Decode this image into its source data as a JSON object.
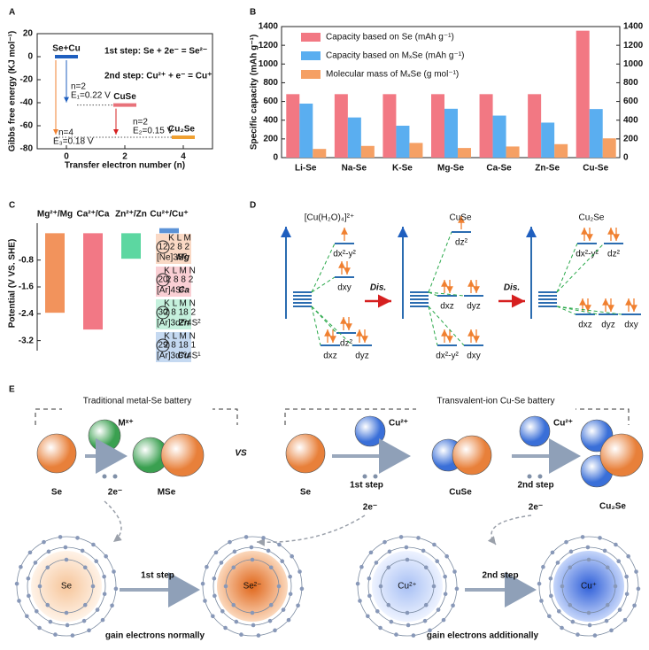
{
  "panels": [
    "A",
    "B",
    "C",
    "D",
    "E"
  ],
  "chart_data": [
    {
      "type": "energy",
      "xlabel": "Transfer electron number (n)",
      "ylabel": "Gibbs free energy (KJ mol⁻¹)",
      "x": [
        0,
        2,
        4
      ],
      "values": [
        0,
        -42,
        -70
      ],
      "labels": [
        "Se+Cu",
        "CuSe",
        "Cu₂Se"
      ],
      "colors": [
        "#1f5fbf",
        "#e8727a",
        "#f0a030"
      ],
      "xlim": [
        -1,
        5
      ],
      "xticks": [
        0,
        2,
        4
      ],
      "ylim": [
        -80,
        20
      ],
      "yticks": [
        -80,
        -60,
        -40,
        -20,
        0,
        20
      ],
      "annotations": [
        "1st step: Se + 2e⁻ = Se²⁻",
        "2nd step: Cu²⁺ + e⁻ = Cu⁺",
        "n=2",
        "E₁=0.22 V",
        "n=2",
        "E₂=0.15 V",
        "n=4",
        "E₃=0.18 V"
      ]
    },
    {
      "type": "bar",
      "ylabel": "Specific capacity (mAh g⁻¹)",
      "categories": [
        "Li-Se",
        "Na-Se",
        "K-Se",
        "Mg-Se",
        "Ca-Se",
        "Zn-Se",
        "Cu-Se"
      ],
      "series": [
        {
          "name": "Capacity based on Se (mAh g⁻¹)",
          "color": "#f27883",
          "values": [
            678,
            678,
            678,
            678,
            678,
            678,
            1356
          ]
        },
        {
          "name": "Capacity based on MₓSe (mAh g⁻¹)",
          "color": "#5aaef0",
          "values": [
            577,
            429,
            341,
            522,
            449,
            374,
            519
          ]
        },
        {
          "name": "Molecular mass of MₓSe (g mol⁻¹)",
          "color": "#f5a064",
          "axis": "y2",
          "values": [
            93,
            125,
            157,
            103,
            119,
            144,
            206
          ]
        }
      ],
      "ylim": [
        0,
        1400
      ],
      "yticks": [
        0,
        200,
        400,
        600,
        800,
        1000,
        1200,
        1400
      ],
      "y2lim": [
        0,
        1400
      ],
      "y2ticks": [
        0,
        200,
        400,
        600,
        800,
        1000,
        1200,
        1400
      ]
    },
    {
      "type": "bar",
      "ylabel": "Potential (V VS. SHE)",
      "categories": [
        "Mg²⁺/Mg",
        "Ca²⁺/Ca",
        "Zn²⁺/Zn",
        "Cu²⁺/Cu⁺"
      ],
      "values": [
        -2.37,
        -2.87,
        -0.76,
        0.15
      ],
      "colors": [
        "#f08040",
        "#f06070",
        "#40d090",
        "#4080d0"
      ],
      "ylim": [
        0.3,
        -3.5
      ],
      "yticks": [
        -3.2,
        -2.4,
        -1.6,
        -0.8
      ],
      "insets": [
        {
          "z": "12",
          "shells": "K L M",
          "counts": "2 8 2",
          "config": "[Ne]3S²",
          "symbol": "Mg"
        },
        {
          "z": "20",
          "shells": "K L M N",
          "counts": "2 8 8 2",
          "config": "[Ar]4S²",
          "symbol": "Ca"
        },
        {
          "z": "30",
          "shells": "K L M N",
          "counts": "2 8 18 2",
          "config": "[Ar]3d¹⁰4S²",
          "symbol": "Zn"
        },
        {
          "z": "29",
          "shells": "K L M N",
          "counts": "2 8 18 1",
          "config": "[Ar]3d¹⁰4S¹",
          "symbol": "Cu"
        }
      ]
    }
  ],
  "diagram_d": {
    "complexes": [
      "[Cu(H₂O)₄]²⁺",
      "CuSe",
      "Cu₂Se"
    ],
    "steps": [
      "Dis.",
      "Dis."
    ],
    "orbitals": [
      [
        "dx²-y²",
        "dxy",
        "dxz",
        "dz²",
        "dyz"
      ],
      [
        "dz²",
        "dxz",
        "dyz",
        "dx²-y²",
        "dxy"
      ],
      [
        "dx²-y²",
        "dz²",
        "dxz",
        "dyz",
        "dxy"
      ]
    ]
  },
  "diagram_e": {
    "titles": [
      "Traditional metal-Se battery",
      "Transvalent-ion Cu-Se battery"
    ],
    "vs": "VS",
    "top": {
      "mx": "Mˣ⁺",
      "se1": "Se",
      "mse": "MSe",
      "e1": "2e⁻",
      "cu1": "Cu²⁺",
      "step1": "1st step",
      "se2": "Se",
      "e2": "2e⁻",
      "cuse": "CuSe",
      "cu2": "Cu²⁺",
      "step2": "2nd step",
      "e3": "2e⁻",
      "cu2se": "Cu₂Se"
    },
    "bottom": {
      "atoms": [
        "Se",
        "Se²⁻",
        "Cu²⁺",
        "Cu⁺"
      ],
      "steps": [
        "1st step",
        "2nd step"
      ],
      "captions": [
        "gain electrons normally",
        "gain electrons additionally"
      ]
    }
  }
}
